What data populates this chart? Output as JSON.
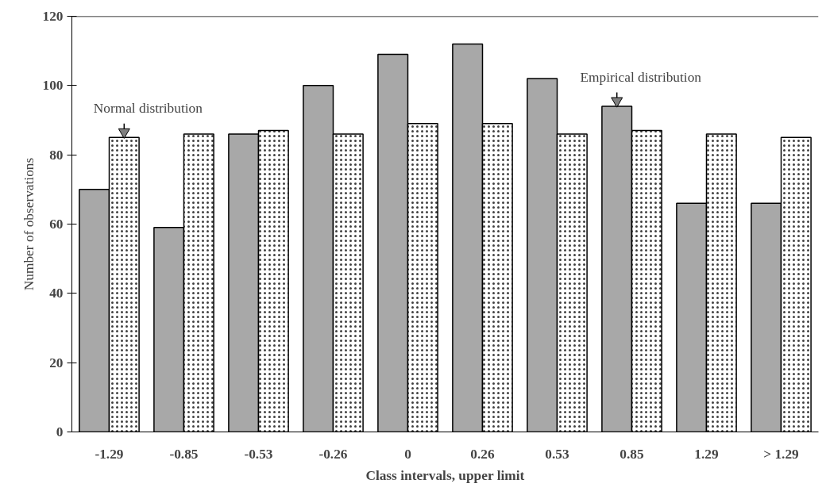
{
  "chart_data": {
    "type": "bar",
    "xlabel": "Class intervals, upper limit",
    "ylabel": "Number of observations",
    "categories": [
      "-1.29",
      "-0.85",
      "-0.53",
      "-0.26",
      "0",
      "0.26",
      "0.53",
      "0.85",
      "1.29",
      "> 1.29"
    ],
    "series": [
      {
        "color": "#a8a8a8",
        "values": [
          70,
          59,
          86,
          100,
          109,
          112,
          102,
          94,
          66,
          66
        ]
      },
      {
        "color": "#ffffff",
        "values": [
          85,
          86,
          87,
          86,
          89,
          89,
          86,
          87,
          86,
          85
        ]
      }
    ],
    "ylim": [
      0,
      120
    ],
    "yticks": [
      0,
      20,
      40,
      60,
      80,
      100,
      120
    ],
    "grid": false,
    "annotations": [
      {
        "text": "Normal distribution",
        "x": "-1.29",
        "y": 85
      },
      {
        "text": "Empirical distribution",
        "x": "0.85",
        "y": 94
      }
    ]
  }
}
